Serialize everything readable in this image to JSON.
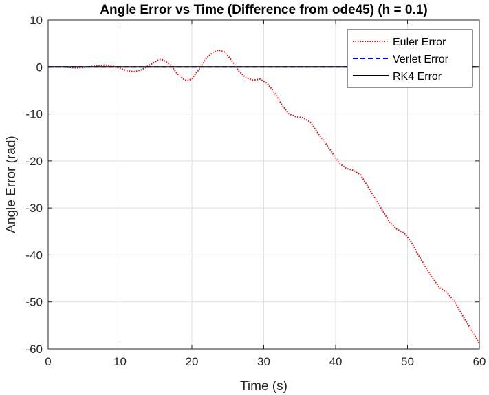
{
  "chart_data": {
    "type": "line",
    "title": "Angle Error vs Time (Difference from ode45) (h = 0.1)",
    "xlabel": "Time (s)",
    "ylabel": "Angle Error (rad)",
    "xlim": [
      0,
      60
    ],
    "ylim": [
      -60,
      10
    ],
    "xticks": [
      0,
      10,
      20,
      30,
      40,
      50,
      60
    ],
    "yticks": [
      10,
      0,
      -10,
      -20,
      -30,
      -40,
      -50,
      -60
    ],
    "grid": true,
    "legend_position": "top-right",
    "series": [
      {
        "name": "Euler Error",
        "color": "#ff0000",
        "style": "dotted",
        "x": [
          0,
          1,
          2,
          3,
          4,
          5,
          6,
          7,
          8,
          9,
          10,
          11,
          12,
          13,
          14,
          15,
          15.5,
          16,
          17,
          18,
          19,
          19.5,
          20,
          21,
          22,
          23,
          23.7,
          24.5,
          25.5,
          26.5,
          27.5,
          28.5,
          29.5,
          30.5,
          31.5,
          32.5,
          33.5,
          34.5,
          35.5,
          36.5,
          37.5,
          38.5,
          39.5,
          40.5,
          41.5,
          42.5,
          43.5,
          44.5,
          45.5,
          46.5,
          47.5,
          48.5,
          49.5,
          50.5,
          51.5,
          52.5,
          53.5,
          54.5,
          55.5,
          56.5,
          57.5,
          58.5,
          59.5,
          60
        ],
        "y": [
          0,
          0,
          0,
          -0.1,
          -0.2,
          -0.1,
          0.1,
          0.3,
          0.4,
          0.2,
          -0.3,
          -0.8,
          -1.0,
          -0.6,
          0.3,
          1.2,
          1.6,
          1.5,
          0.5,
          -1.5,
          -2.8,
          -2.9,
          -2.5,
          -0.5,
          1.8,
          3.2,
          3.6,
          3.2,
          1.5,
          -0.8,
          -2.3,
          -2.8,
          -2.6,
          -3.5,
          -5.5,
          -8.0,
          -10.0,
          -10.6,
          -10.8,
          -11.8,
          -14.0,
          -16.0,
          -18.2,
          -20.5,
          -21.6,
          -22.0,
          -23.0,
          -25.5,
          -28.0,
          -30.5,
          -33.0,
          -34.5,
          -35.3,
          -37.2,
          -40.0,
          -42.5,
          -45.0,
          -47.0,
          -48.0,
          -49.8,
          -52.5,
          -55.0,
          -57.5,
          -59.0
        ]
      },
      {
        "name": "Verlet Error",
        "color": "#0000ff",
        "style": "dashed",
        "x": [
          0,
          60
        ],
        "y": [
          0,
          0
        ]
      },
      {
        "name": "RK4 Error",
        "color": "#000000",
        "style": "solid",
        "x": [
          0,
          60
        ],
        "y": [
          0,
          0
        ]
      }
    ]
  }
}
